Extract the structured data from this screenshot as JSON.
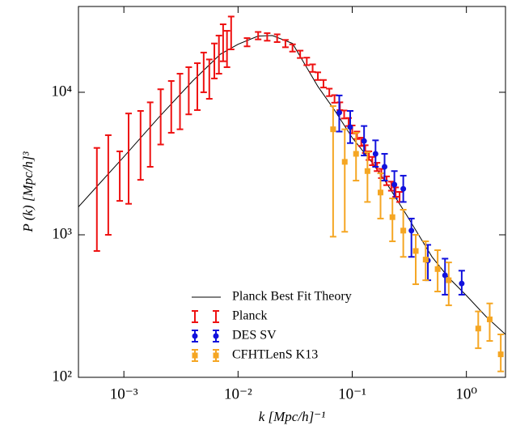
{
  "chart_data": {
    "type": "errorbar",
    "xlabel": "k  [Mpc/h]⁻¹",
    "ylabel": "P (k)  [Mpc/h]³",
    "xscale": "log",
    "yscale": "log",
    "xlim": [
      0.0004,
      2.2
    ],
    "ylim": [
      100,
      40000
    ],
    "xticks": [
      {
        "value": 0.001,
        "label": "10⁻³"
      },
      {
        "value": 0.01,
        "label": "10⁻²"
      },
      {
        "value": 0.1,
        "label": "10⁻¹"
      },
      {
        "value": 1,
        "label": "10⁰"
      }
    ],
    "yticks": [
      {
        "value": 100,
        "label": "10²"
      },
      {
        "value": 1000,
        "label": "10³"
      },
      {
        "value": 10000,
        "label": "10⁴"
      }
    ],
    "grid": false,
    "legend": "lower center",
    "series": [
      {
        "name": "Planck Best Fit Theory",
        "style": "line",
        "color": "#000000",
        "x": [
          0.0004,
          0.0006,
          0.001,
          0.002,
          0.004,
          0.007,
          0.01,
          0.015,
          0.02,
          0.03,
          0.05,
          0.07,
          0.1,
          0.15,
          0.2,
          0.3,
          0.5,
          0.7,
          1,
          1.5,
          2.2
        ],
        "values": [
          1570,
          2250,
          3530,
          6600,
          12000,
          18500,
          21700,
          24800,
          25000,
          22000,
          11000,
          7500,
          4800,
          3200,
          2300,
          1370,
          700,
          500,
          375,
          265,
          200
        ]
      },
      {
        "name": "Planck",
        "style": "errorbar",
        "marker": null,
        "color": "#ee1111",
        "x": [
          0.00058,
          0.00073,
          0.00092,
          0.0011,
          0.0014,
          0.0017,
          0.0021,
          0.0026,
          0.0031,
          0.0037,
          0.0044,
          0.005,
          0.0056,
          0.0062,
          0.0068,
          0.0074,
          0.008,
          0.0087,
          0.012,
          0.015,
          0.018,
          0.022,
          0.026,
          0.03,
          0.035,
          0.04,
          0.045,
          0.05,
          0.056,
          0.063,
          0.07,
          0.078,
          0.085,
          0.093,
          0.1,
          0.11,
          0.12,
          0.13,
          0.14,
          0.15,
          0.165,
          0.18,
          0.2,
          0.22,
          0.24,
          0.26
        ],
        "values": [
          1800,
          2300,
          2600,
          3400,
          4300,
          5000,
          6500,
          7500,
          8200,
          10000,
          10500,
          14000,
          12000,
          16500,
          18000,
          22000,
          20000,
          26000,
          22500,
          25000,
          24500,
          24000,
          22000,
          20500,
          18500,
          16500,
          14800,
          13000,
          11500,
          10000,
          9000,
          8000,
          7000,
          6200,
          5500,
          5000,
          4500,
          4000,
          3600,
          3300,
          3000,
          2700,
          2400,
          2200,
          2000,
          1850
        ],
        "lower": [
          770,
          1000,
          1730,
          1650,
          2430,
          3000,
          4300,
          5200,
          5500,
          7000,
          7500,
          10000,
          9000,
          12500,
          13500,
          16500,
          15000,
          20000,
          21000,
          23500,
          23000,
          22500,
          20700,
          19300,
          17400,
          15500,
          13900,
          12200,
          10800,
          9400,
          8450,
          7500,
          6550,
          5800,
          5150,
          4700,
          4200,
          3750,
          3350,
          3080,
          2800,
          2500,
          2230,
          2040,
          1850,
          1700
        ],
        "upper": [
          4070,
          5000,
          3850,
          7100,
          7400,
          8500,
          10500,
          12000,
          13500,
          15000,
          16000,
          19000,
          17000,
          22000,
          25000,
          30000,
          27000,
          34000,
          24000,
          26500,
          26000,
          25500,
          23300,
          21700,
          19600,
          17500,
          15700,
          13800,
          12200,
          10600,
          9550,
          8500,
          7450,
          6600,
          5850,
          5300,
          4800,
          4250,
          3850,
          3520,
          3200,
          2900,
          2570,
          2360,
          2150,
          2000
        ]
      },
      {
        "name": "DES SV",
        "style": "errorbar",
        "marker": "circle",
        "color": "#1111dd",
        "x": [
          0.077,
          0.096,
          0.127,
          0.16,
          0.192,
          0.234,
          0.28,
          0.33,
          0.46,
          0.65,
          0.91
        ],
        "values": [
          7200,
          5700,
          4550,
          3700,
          3000,
          2250,
          2100,
          1070,
          660,
          520,
          455
        ],
        "lower": [
          5300,
          4400,
          3600,
          3000,
          2400,
          1800,
          1700,
          700,
          480,
          380,
          380
        ],
        "upper": [
          9500,
          7400,
          5800,
          4600,
          3700,
          2800,
          2600,
          1300,
          850,
          680,
          560
        ]
      },
      {
        "name": "CFHTLenS K13",
        "style": "errorbar",
        "marker": "square",
        "color": "#f5a623",
        "x": [
          0.068,
          0.086,
          0.108,
          0.136,
          0.177,
          0.225,
          0.28,
          0.36,
          0.44,
          0.56,
          0.7,
          1.27,
          1.6,
          2.0
        ],
        "values": [
          5500,
          3250,
          3700,
          2800,
          1980,
          1330,
          1070,
          770,
          670,
          575,
          480,
          220,
          255,
          145
        ],
        "lower": [
          970,
          1050,
          2400,
          1700,
          1300,
          900,
          700,
          450,
          480,
          400,
          320,
          160,
          180,
          110
        ],
        "upper": [
          8000,
          5500,
          5200,
          3800,
          2700,
          1800,
          1500,
          1000,
          900,
          780,
          640,
          290,
          330,
          200
        ]
      }
    ]
  }
}
